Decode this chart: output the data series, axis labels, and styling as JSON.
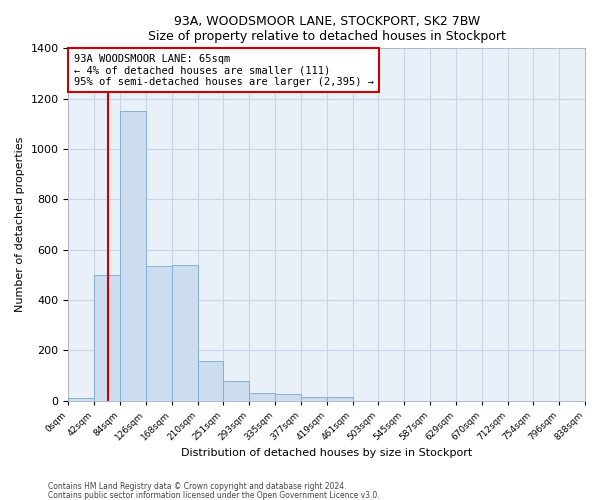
{
  "title1": "93A, WOODSMOOR LANE, STOCKPORT, SK2 7BW",
  "title2": "Size of property relative to detached houses in Stockport",
  "xlabel": "Distribution of detached houses by size in Stockport",
  "ylabel": "Number of detached properties",
  "footnote1": "Contains HM Land Registry data © Crown copyright and database right 2024.",
  "footnote2": "Contains public sector information licensed under the Open Government Licence v3.0.",
  "bin_labels": [
    "0sqm",
    "42sqm",
    "84sqm",
    "126sqm",
    "168sqm",
    "210sqm",
    "251sqm",
    "293sqm",
    "335sqm",
    "377sqm",
    "419sqm",
    "461sqm",
    "503sqm",
    "545sqm",
    "587sqm",
    "629sqm",
    "670sqm",
    "712sqm",
    "754sqm",
    "796sqm",
    "838sqm"
  ],
  "bar_values": [
    10,
    500,
    1150,
    535,
    540,
    160,
    80,
    33,
    28,
    14,
    15,
    0,
    0,
    0,
    0,
    0,
    0,
    0,
    0,
    0
  ],
  "bar_color": "#ccddf0",
  "bar_edge_color": "#7aaad0",
  "grid_color": "#c8d4e8",
  "background_color": "#eaf0f8",
  "vline_x": 65,
  "vline_color": "#cc0000",
  "annotation_text": "93A WOODSMOOR LANE: 65sqm\n← 4% of detached houses are smaller (111)\n95% of semi-detached houses are larger (2,395) →",
  "annotation_box_color": "#cc0000",
  "ylim": [
    0,
    1400
  ],
  "yticks": [
    0,
    200,
    400,
    600,
    800,
    1000,
    1200,
    1400
  ],
  "bin_width": 42,
  "n_visible_bins": 20
}
